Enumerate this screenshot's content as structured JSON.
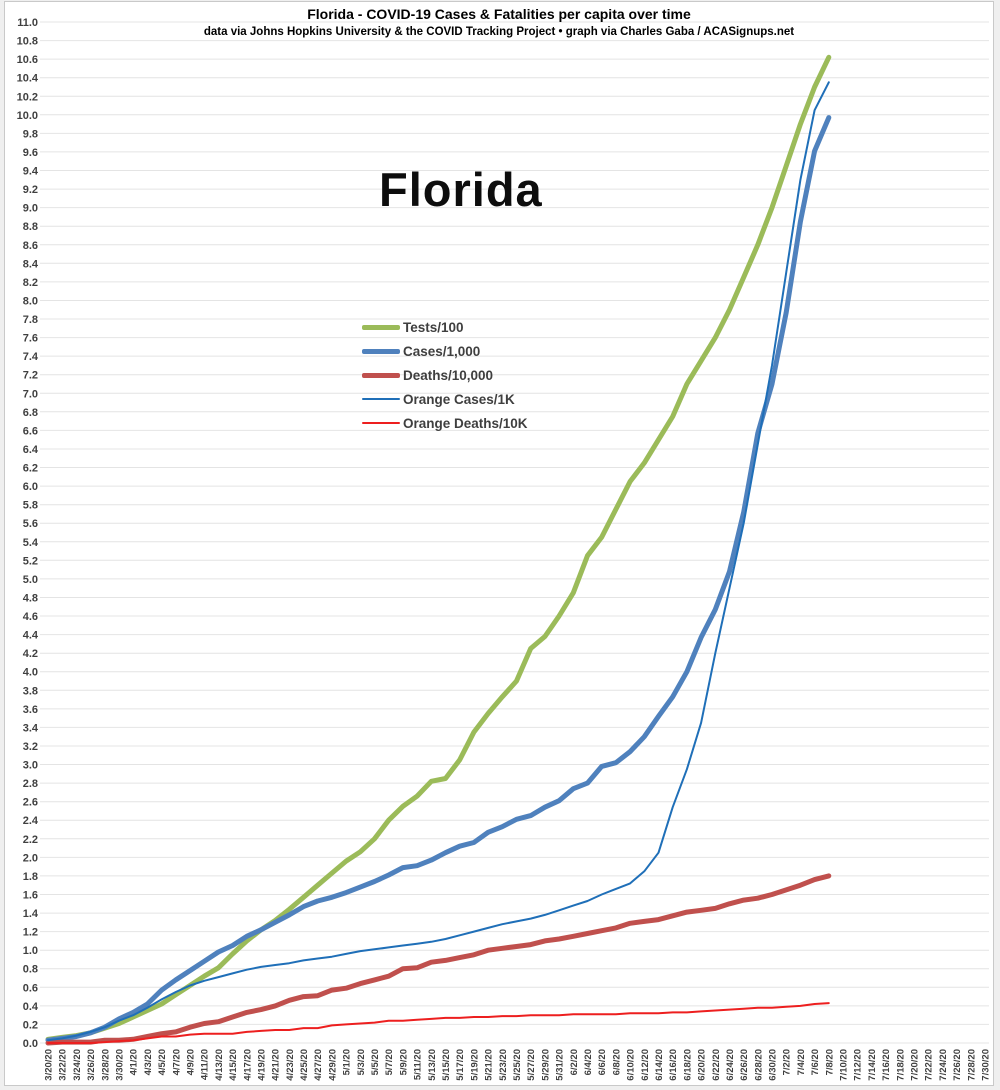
{
  "header": {
    "title": "Florida - COVID-19 Cases & Fatalities per capita over time",
    "subtitle": "data via Johns Hopkins University & the COVID Tracking Project • graph via Charles Gaba / ACASignups.net"
  },
  "chart_data": {
    "type": "line",
    "title": "Florida - COVID-19 Cases & Fatalities per capita over time",
    "subtitle": "data via Johns Hopkins University & the COVID Tracking Project • graph via Charles Gaba / ACASignups.net",
    "inner_label": "Florida",
    "xlabel": "",
    "ylabel": "",
    "grid": "horizontal",
    "legend_position": "center-left",
    "colors": {
      "tests": "#9BBB59",
      "cases": "#4F81BD",
      "deaths": "#C0504D",
      "orange_cases": "#1F6FB8",
      "orange_deaths": "#ED1F1F",
      "gridline": "#e4e4e4",
      "axis_text": "#404040",
      "frame": "#c9c9c9"
    },
    "y_axis": {
      "min": 0.0,
      "max": 11.0,
      "step": 0.2,
      "tick_labels": [
        "0.0",
        "0.2",
        "0.4",
        "0.6",
        "0.8",
        "1.0",
        "1.2",
        "1.4",
        "1.6",
        "1.8",
        "2.0",
        "2.2",
        "2.4",
        "2.6",
        "2.8",
        "3.0",
        "3.2",
        "3.4",
        "3.6",
        "3.8",
        "4.0",
        "4.2",
        "4.4",
        "4.6",
        "4.8",
        "5.0",
        "5.2",
        "5.4",
        "5.6",
        "5.8",
        "6.0",
        "6.2",
        "6.4",
        "6.6",
        "6.8",
        "7.0",
        "7.2",
        "7.4",
        "7.6",
        "7.8",
        "8.0",
        "8.2",
        "8.4",
        "8.6",
        "8.8",
        "9.0",
        "9.2",
        "9.4",
        "9.6",
        "9.8",
        "10.0",
        "10.2",
        "10.4",
        "10.6",
        "10.8",
        "11.0"
      ]
    },
    "x_axis": {
      "range": [
        "3/20/20",
        "7/30/20"
      ],
      "tick_labels": [
        "3/20/20",
        "3/22/20",
        "3/24/20",
        "3/26/20",
        "3/28/20",
        "3/30/20",
        "4/1/20",
        "4/3/20",
        "4/5/20",
        "4/7/20",
        "4/9/20",
        "4/11/20",
        "4/13/20",
        "4/15/20",
        "4/17/20",
        "4/19/20",
        "4/21/20",
        "4/23/20",
        "4/25/20",
        "4/27/20",
        "4/29/20",
        "5/1/20",
        "5/3/20",
        "5/5/20",
        "5/7/20",
        "5/9/20",
        "5/11/20",
        "5/13/20",
        "5/15/20",
        "5/17/20",
        "5/19/20",
        "5/21/20",
        "5/23/20",
        "5/25/20",
        "5/27/20",
        "5/29/20",
        "5/31/20",
        "6/2/20",
        "6/4/20",
        "6/6/20",
        "6/8/20",
        "6/10/20",
        "6/12/20",
        "6/14/20",
        "6/16/20",
        "6/18/20",
        "6/20/20",
        "6/22/20",
        "6/24/20",
        "6/26/20",
        "6/28/20",
        "6/30/20",
        "7/2/20",
        "7/4/20",
        "7/6/20",
        "7/8/20",
        "7/10/20",
        "7/12/20",
        "7/14/20",
        "7/16/20",
        "7/18/20",
        "7/20/20",
        "7/22/20",
        "7/24/20",
        "7/26/20",
        "7/28/20",
        "7/30/20"
      ]
    },
    "series_dates": [
      "3/20/20",
      "3/22/20",
      "3/24/20",
      "3/26/20",
      "3/28/20",
      "3/30/20",
      "4/1/20",
      "4/3/20",
      "4/5/20",
      "4/7/20",
      "4/9/20",
      "4/11/20",
      "4/13/20",
      "4/15/20",
      "4/17/20",
      "4/19/20",
      "4/21/20",
      "4/23/20",
      "4/25/20",
      "4/27/20",
      "4/29/20",
      "5/1/20",
      "5/3/20",
      "5/5/20",
      "5/7/20",
      "5/9/20",
      "5/11/20",
      "5/13/20",
      "5/15/20",
      "5/17/20",
      "5/19/20",
      "5/21/20",
      "5/23/20",
      "5/25/20",
      "5/27/20",
      "5/29/20",
      "5/31/20",
      "6/2/20",
      "6/4/20",
      "6/6/20",
      "6/8/20",
      "6/10/20",
      "6/12/20",
      "6/14/20",
      "6/16/20",
      "6/18/20",
      "6/20/20",
      "6/22/20",
      "6/24/20",
      "6/26/20",
      "6/28/20",
      "6/30/20",
      "7/2/20",
      "7/4/20",
      "7/6/20",
      "7/8/20"
    ],
    "series": [
      {
        "name": "Tests/100",
        "color": "#9BBB59",
        "stroke_width": 5,
        "values": [
          0.04,
          0.06,
          0.08,
          0.11,
          0.16,
          0.21,
          0.28,
          0.35,
          0.42,
          0.52,
          0.62,
          0.72,
          0.81,
          0.96,
          1.1,
          1.22,
          1.32,
          1.44,
          1.57,
          1.7,
          1.83,
          1.96,
          2.06,
          2.2,
          2.4,
          2.55,
          2.66,
          2.82,
          2.85,
          3.05,
          3.35,
          3.55,
          3.73,
          3.9,
          4.25,
          4.38,
          4.6,
          4.85,
          5.25,
          5.45,
          5.75,
          6.05,
          6.25,
          6.5,
          6.75,
          7.1,
          7.35,
          7.6,
          7.9,
          8.25,
          8.6,
          9.0,
          9.45,
          9.9,
          10.3,
          10.62
        ]
      },
      {
        "name": "Cases/1,000",
        "color": "#4F81BD",
        "stroke_width": 5,
        "values": [
          0.03,
          0.05,
          0.07,
          0.11,
          0.17,
          0.26,
          0.33,
          0.42,
          0.57,
          0.68,
          0.78,
          0.88,
          0.98,
          1.05,
          1.15,
          1.22,
          1.3,
          1.38,
          1.47,
          1.53,
          1.57,
          1.62,
          1.68,
          1.74,
          1.81,
          1.89,
          1.91,
          1.97,
          2.05,
          2.12,
          2.16,
          2.27,
          2.33,
          2.41,
          2.45,
          2.54,
          2.61,
          2.74,
          2.8,
          2.98,
          3.02,
          3.14,
          3.3,
          3.52,
          3.73,
          4.0,
          4.37,
          4.67,
          5.08,
          5.72,
          6.57,
          7.1,
          7.87,
          8.85,
          9.61,
          9.97
        ]
      },
      {
        "name": "Deaths/10,000",
        "color": "#C0504D",
        "stroke_width": 5,
        "values": [
          0.0,
          0.01,
          0.01,
          0.01,
          0.03,
          0.03,
          0.04,
          0.07,
          0.1,
          0.12,
          0.17,
          0.21,
          0.23,
          0.28,
          0.33,
          0.36,
          0.4,
          0.46,
          0.5,
          0.51,
          0.57,
          0.59,
          0.64,
          0.68,
          0.72,
          0.8,
          0.81,
          0.87,
          0.89,
          0.92,
          0.95,
          1.0,
          1.02,
          1.04,
          1.06,
          1.1,
          1.12,
          1.15,
          1.18,
          1.21,
          1.24,
          1.29,
          1.31,
          1.33,
          1.37,
          1.41,
          1.43,
          1.45,
          1.5,
          1.54,
          1.56,
          1.6,
          1.65,
          1.7,
          1.76,
          1.8
        ]
      },
      {
        "name": "Orange Cases/1K",
        "color": "#1F6FB8",
        "stroke_width": 2,
        "values": [
          0.03,
          0.05,
          0.08,
          0.12,
          0.17,
          0.24,
          0.3,
          0.38,
          0.47,
          0.55,
          0.62,
          0.67,
          0.71,
          0.75,
          0.79,
          0.82,
          0.84,
          0.86,
          0.89,
          0.91,
          0.93,
          0.96,
          0.99,
          1.01,
          1.03,
          1.05,
          1.07,
          1.09,
          1.12,
          1.16,
          1.2,
          1.24,
          1.28,
          1.31,
          1.34,
          1.38,
          1.43,
          1.48,
          1.53,
          1.6,
          1.66,
          1.72,
          1.85,
          2.05,
          2.54,
          2.95,
          3.45,
          4.2,
          4.9,
          5.6,
          6.45,
          7.3,
          8.3,
          9.3,
          10.05,
          10.35
        ]
      },
      {
        "name": "Orange Deaths/10K",
        "color": "#ED1F1F",
        "stroke_width": 2,
        "values": [
          0.0,
          0.0,
          0.0,
          0.0,
          0.01,
          0.02,
          0.03,
          0.05,
          0.07,
          0.07,
          0.09,
          0.1,
          0.1,
          0.1,
          0.12,
          0.13,
          0.14,
          0.14,
          0.16,
          0.16,
          0.19,
          0.2,
          0.21,
          0.22,
          0.24,
          0.24,
          0.25,
          0.26,
          0.27,
          0.27,
          0.28,
          0.28,
          0.29,
          0.29,
          0.3,
          0.3,
          0.3,
          0.31,
          0.31,
          0.31,
          0.31,
          0.32,
          0.32,
          0.32,
          0.33,
          0.33,
          0.34,
          0.35,
          0.36,
          0.37,
          0.38,
          0.38,
          0.39,
          0.4,
          0.42,
          0.43
        ]
      }
    ]
  }
}
